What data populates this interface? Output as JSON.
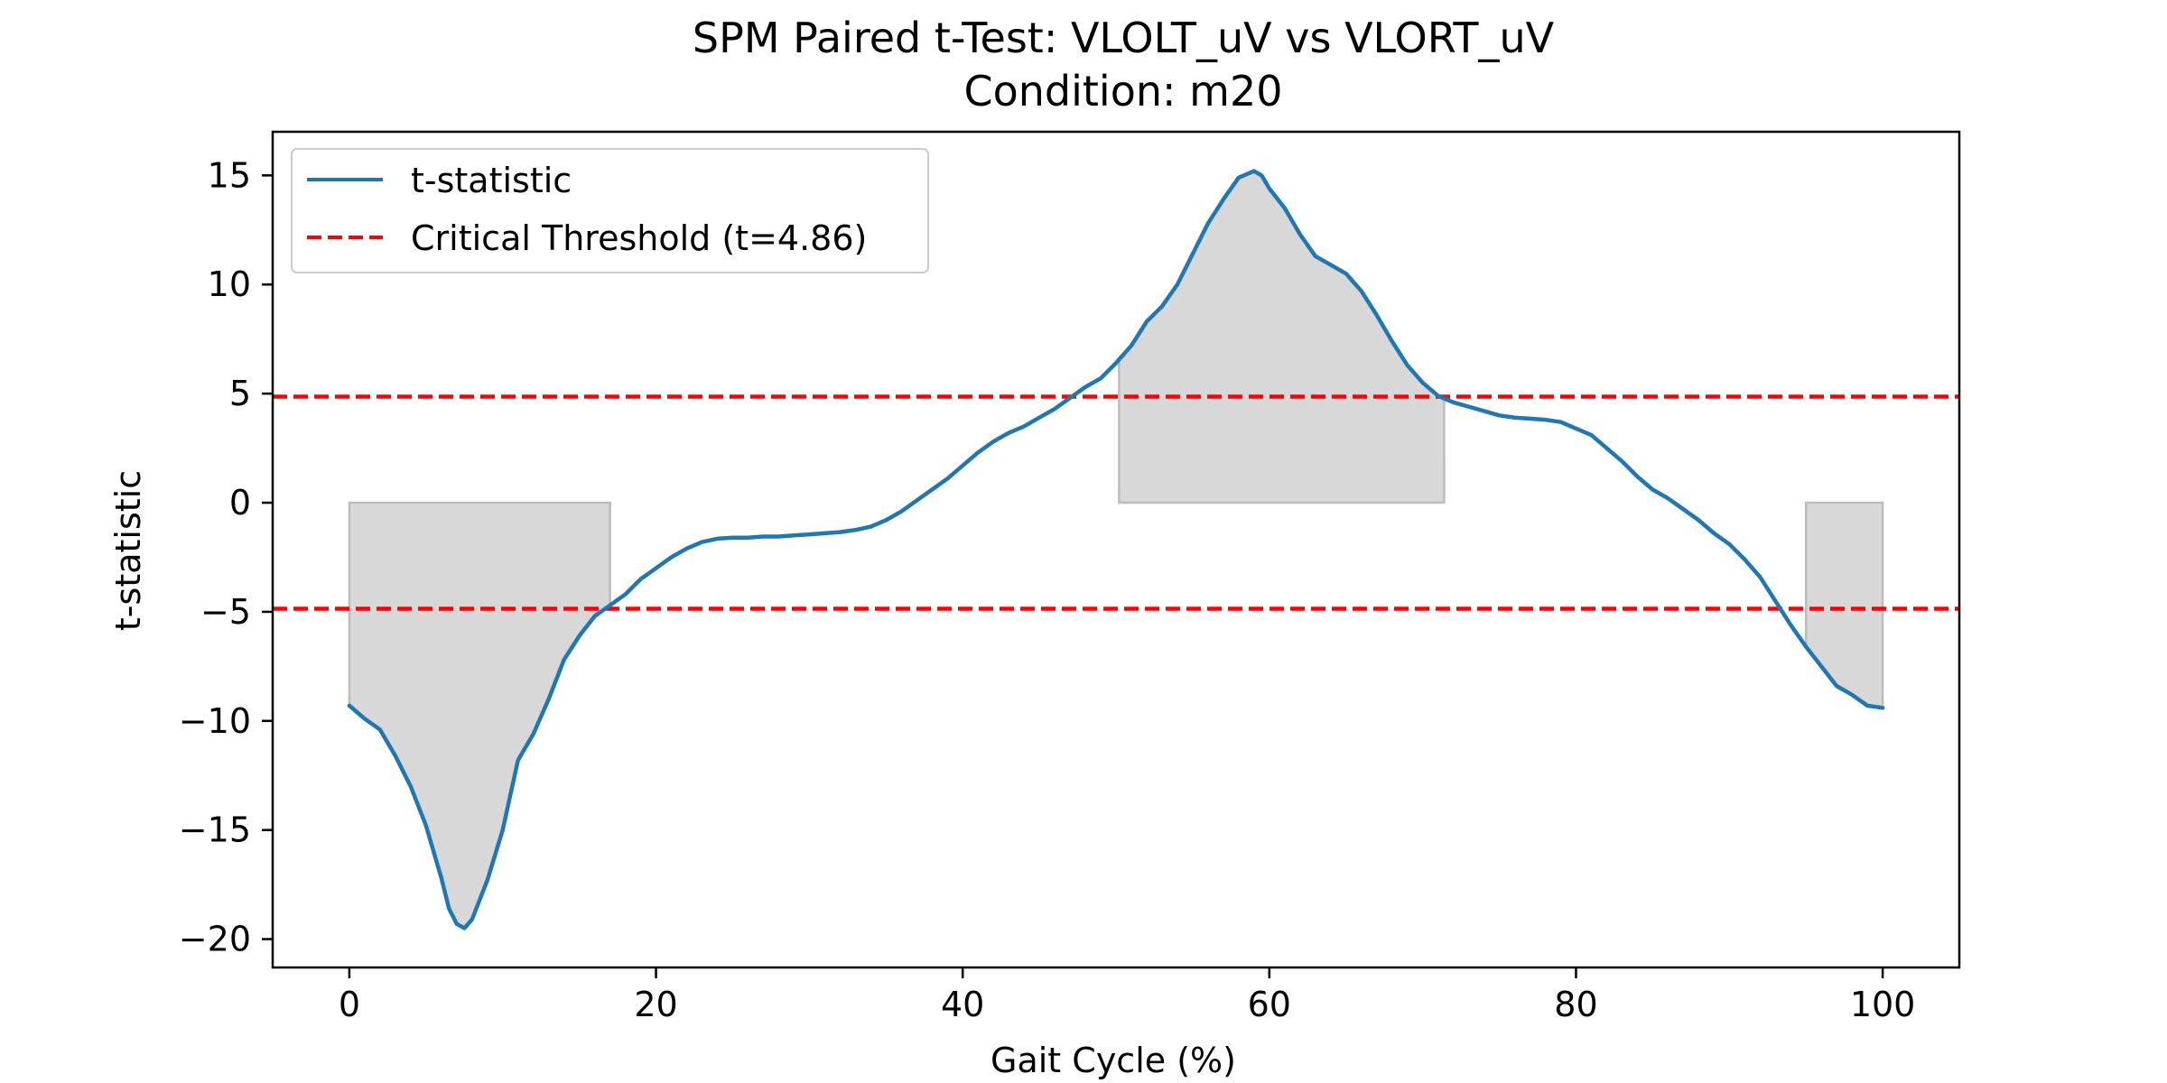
{
  "chart_data": {
    "type": "line",
    "title": "SPM Paired t-Test: VLOLT_uV vs VLORT_uV",
    "subtitle": "Condition: m20",
    "xlabel": "Gait Cycle (%)",
    "ylabel": "t-statistic",
    "xlim": [
      -5,
      105
    ],
    "ylim": [
      -21.3,
      17
    ],
    "xticks": [
      0,
      20,
      40,
      60,
      80,
      100
    ],
    "xtick_labels": [
      "0",
      "20",
      "40",
      "60",
      "80",
      "100"
    ],
    "yticks": [
      -20,
      -15,
      -10,
      -5,
      0,
      5,
      10,
      15
    ],
    "ytick_labels": [
      "−20",
      "−15",
      "−10",
      "−5",
      "0",
      "5",
      "10",
      "15"
    ],
    "grid": false,
    "legend_position": "top-left",
    "series": [
      {
        "name": "t-statistic",
        "color": "#1f77b4",
        "x": [
          0,
          1,
          2,
          3,
          4,
          5,
          6,
          6.5,
          7,
          7.5,
          8,
          9,
          10,
          11,
          12,
          13,
          14,
          15,
          16,
          17,
          18,
          19,
          20,
          21,
          22,
          23,
          24,
          25,
          26,
          27,
          28,
          29,
          30,
          31,
          32,
          33,
          34,
          35,
          36,
          37,
          38,
          39,
          40,
          41,
          42,
          43,
          44,
          45,
          46,
          47,
          48,
          49,
          50,
          51,
          52,
          53,
          54,
          55,
          56,
          57,
          58,
          59,
          59.5,
          60,
          61,
          62,
          63,
          64,
          65,
          66,
          67,
          68,
          69,
          70,
          71,
          72,
          73,
          74,
          75,
          76,
          77,
          78,
          79,
          80,
          81,
          82,
          83,
          84,
          85,
          86,
          87,
          88,
          89,
          90,
          91,
          92,
          93,
          94,
          95,
          96,
          97,
          98,
          99,
          100
        ],
        "values": [
          -9.3,
          -9.9,
          -10.4,
          -11.6,
          -13.0,
          -14.8,
          -17.2,
          -18.6,
          -19.3,
          -19.5,
          -19.1,
          -17.3,
          -15.0,
          -11.8,
          -10.6,
          -9.0,
          -7.2,
          -6.1,
          -5.2,
          -4.7,
          -4.2,
          -3.5,
          -3.0,
          -2.5,
          -2.1,
          -1.8,
          -1.65,
          -1.6,
          -1.6,
          -1.55,
          -1.55,
          -1.5,
          -1.45,
          -1.4,
          -1.35,
          -1.25,
          -1.1,
          -0.8,
          -0.4,
          0.1,
          0.6,
          1.1,
          1.7,
          2.3,
          2.8,
          3.2,
          3.5,
          3.9,
          4.3,
          4.8,
          5.3,
          5.7,
          6.4,
          7.2,
          8.3,
          9.0,
          10.0,
          11.4,
          12.8,
          13.9,
          14.9,
          15.2,
          15.0,
          14.4,
          13.5,
          12.3,
          11.3,
          10.9,
          10.5,
          9.7,
          8.6,
          7.4,
          6.3,
          5.5,
          4.9,
          4.6,
          4.4,
          4.2,
          4.0,
          3.9,
          3.85,
          3.8,
          3.7,
          3.4,
          3.1,
          2.5,
          1.9,
          1.2,
          0.6,
          0.2,
          -0.3,
          -0.8,
          -1.4,
          -1.9,
          -2.6,
          -3.4,
          -4.5,
          -5.6,
          -6.6,
          -7.5,
          -8.4,
          -8.8,
          -9.3,
          -9.4
        ]
      },
      {
        "name": "Critical Threshold (t=4.86)",
        "color": "#ff0000",
        "style": "dashed",
        "values": [
          4.86,
          -4.86
        ]
      }
    ],
    "shaded_regions": [
      {
        "x_start": 0,
        "x_end": 17
      },
      {
        "x_start": 50.2,
        "x_end": 71.4
      },
      {
        "x_start": 95,
        "x_end": 100
      }
    ],
    "colors": {
      "line": "#1f77b4",
      "threshold": "#ff0000",
      "fill": "#d8d8d8",
      "fill_edge": "#bdbdbd"
    }
  }
}
